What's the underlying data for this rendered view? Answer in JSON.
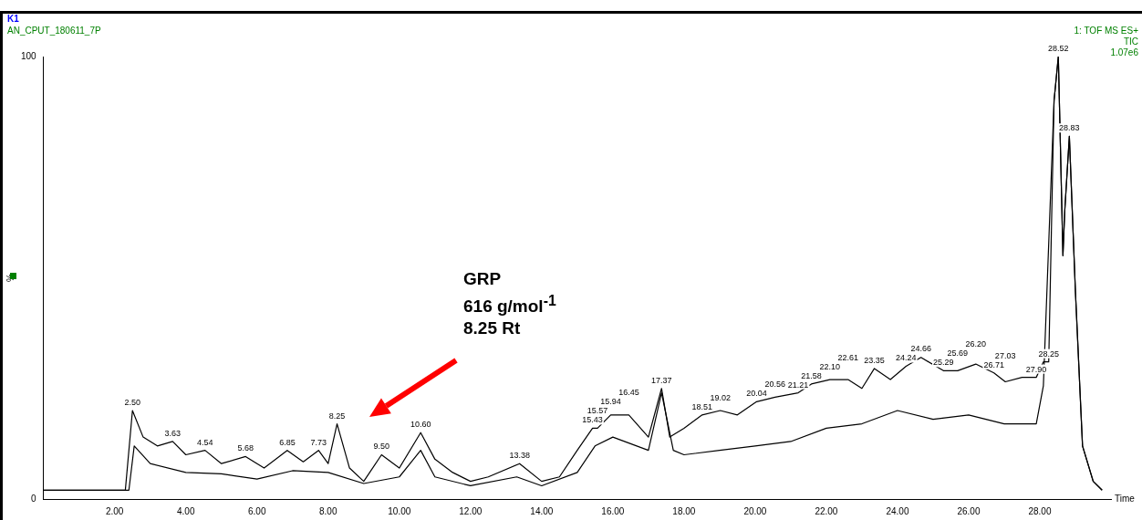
{
  "chart_data": {
    "type": "line",
    "title": "K1",
    "subtitle": "AN_CPUT_180611_7P",
    "xlabel": "Time",
    "ylabel": "%",
    "xlim": [
      0,
      30
    ],
    "ylim": [
      0,
      100
    ],
    "xticks": [
      {
        "value": 2,
        "label": "2.00"
      },
      {
        "value": 4,
        "label": "4.00"
      },
      {
        "value": 6,
        "label": "6.00"
      },
      {
        "value": 8,
        "label": "8.00"
      },
      {
        "value": 10,
        "label": "10.00"
      },
      {
        "value": 12,
        "label": "12.00"
      },
      {
        "value": 14,
        "label": "14.00"
      },
      {
        "value": 16,
        "label": "16.00"
      },
      {
        "value": 18,
        "label": "18.00"
      },
      {
        "value": 20,
        "label": "20.00"
      },
      {
        "value": 22,
        "label": "22.00"
      },
      {
        "value": 24,
        "label": "24.00"
      },
      {
        "value": 26,
        "label": "26.00"
      },
      {
        "value": 28,
        "label": "28.00"
      }
    ],
    "yticks": [
      0,
      100
    ],
    "series": [
      {
        "color": "#000000",
        "x": [
          0,
          1,
          2,
          2.3,
          2.5,
          2.8,
          3.2,
          3.63,
          4,
          4.54,
          5,
          5.68,
          6.2,
          6.85,
          7.3,
          7.73,
          8,
          8.25,
          8.6,
          9,
          9.5,
          10,
          10.6,
          11,
          11.5,
          12,
          12.5,
          13.38,
          14,
          14.5,
          15,
          15.43,
          15.57,
          15.94,
          16.45,
          17,
          17.37,
          17.6,
          18,
          18.51,
          19.02,
          19.5,
          20.04,
          20.56,
          21.21,
          21.58,
          22.1,
          22.61,
          23,
          23.35,
          23.8,
          24.24,
          24.66,
          25.29,
          25.69,
          26.2,
          26.71,
          27.03,
          27.5,
          27.9,
          28.1,
          28.25,
          28.4,
          28.52,
          28.65,
          28.7,
          28.83,
          29,
          29.2,
          29.5,
          29.75
        ],
        "values": [
          2,
          2,
          2,
          2,
          20,
          14,
          12,
          13,
          10,
          11,
          8,
          9.6,
          7,
          11,
          8.4,
          11,
          8,
          17,
          7,
          4,
          10,
          7,
          15,
          9,
          6,
          4,
          5,
          8,
          4,
          5,
          11,
          16,
          16,
          19,
          19,
          14,
          25,
          14,
          16,
          19,
          20,
          19,
          22,
          23,
          24,
          26,
          27,
          27,
          25,
          29.5,
          27,
          30,
          32,
          29,
          29,
          30.5,
          28.5,
          26.5,
          27.5,
          27.5,
          31,
          31,
          90,
          100,
          55,
          65,
          82,
          47,
          12,
          4,
          2
        ]
      },
      {
        "color": "#000000",
        "x": [
          0,
          1,
          2,
          2.4,
          2.55,
          3,
          4,
          5,
          6,
          7,
          8,
          9,
          10,
          10.6,
          11,
          12,
          13.3,
          14,
          15,
          15.5,
          16,
          17,
          17.37,
          17.7,
          18,
          19,
          20,
          21,
          22,
          23,
          24,
          25,
          26,
          27,
          27.9,
          28.1,
          28.4,
          28.52,
          28.65,
          28.7,
          28.83,
          29,
          29.2,
          29.5,
          29.75
        ],
        "values": [
          2,
          2,
          2,
          2,
          12,
          8,
          6,
          5.7,
          4.5,
          6.4,
          6,
          3.5,
          5,
          11,
          5,
          3,
          5,
          3,
          6,
          12,
          14,
          11,
          24,
          11,
          10,
          11,
          12,
          13,
          16,
          17,
          20,
          18,
          19,
          17,
          17,
          25.6,
          90,
          100,
          55,
          65,
          82,
          47,
          12,
          4,
          2
        ]
      }
    ],
    "annotations": [
      "1: TOF MS ES+",
      "TIC",
      "1.07e6",
      "GRP",
      "616 g/mol$^{-1}$",
      "8.25 Rt",
      {
        "text": "2.50",
        "x": 2.5,
        "y": 20
      },
      {
        "text": "3.63",
        "x": 3.63,
        "y": 13
      },
      {
        "text": "4.54",
        "x": 4.54,
        "y": 11
      },
      {
        "text": "5.68",
        "x": 5.68,
        "y": 9.6
      },
      {
        "text": "6.85",
        "x": 6.85,
        "y": 11
      },
      {
        "text": "7.73",
        "x": 7.73,
        "y": 11
      },
      {
        "text": "8.25",
        "x": 8.25,
        "y": 17
      },
      {
        "text": "9.50",
        "x": 9.5,
        "y": 10
      },
      {
        "text": "10.60",
        "x": 10.6,
        "y": 15
      },
      {
        "text": "13.38",
        "x": 13.38,
        "y": 8
      },
      {
        "text": "15.43",
        "x": 15.43,
        "y": 16
      },
      {
        "text": "15.57",
        "x": 15.57,
        "y": 16
      },
      {
        "text": "15.94",
        "x": 15.94,
        "y": 19
      },
      {
        "text": "16.45",
        "x": 16.45,
        "y": 19
      },
      {
        "text": "17.37",
        "x": 17.37,
        "y": 25
      },
      {
        "text": "18.51",
        "x": 18.51,
        "y": 19
      },
      {
        "text": "19.02",
        "x": 19.02,
        "y": 20
      },
      {
        "text": "20.04",
        "x": 20.04,
        "y": 22
      },
      {
        "text": "20.56",
        "x": 20.56,
        "y": 23
      },
      {
        "text": "21.21",
        "x": 21.21,
        "y": 24
      },
      {
        "text": "21.58",
        "x": 21.58,
        "y": 26
      },
      {
        "text": "22.10",
        "x": 22.1,
        "y": 27
      },
      {
        "text": "22.61",
        "x": 22.61,
        "y": 27
      },
      {
        "text": "23.35",
        "x": 23.35,
        "y": 29.5
      },
      {
        "text": "24.24",
        "x": 24.24,
        "y": 30
      },
      {
        "text": "24.66",
        "x": 24.66,
        "y": 32
      },
      {
        "text": "25.29",
        "x": 25.29,
        "y": 29
      },
      {
        "text": "25.69",
        "x": 25.69,
        "y": 29
      },
      {
        "text": "26.20",
        "x": 26.2,
        "y": 30.5
      },
      {
        "text": "26.71",
        "x": 26.71,
        "y": 28.5
      },
      {
        "text": "27.03",
        "x": 27.03,
        "y": 26.5
      },
      {
        "text": "27.90",
        "x": 27.9,
        "y": 27.5
      },
      {
        "text": "28.25",
        "x": 28.25,
        "y": 31
      },
      {
        "text": "28.52",
        "x": 28.52,
        "y": 100
      },
      {
        "text": "28.83",
        "x": 28.83,
        "y": 82
      }
    ]
  }
}
